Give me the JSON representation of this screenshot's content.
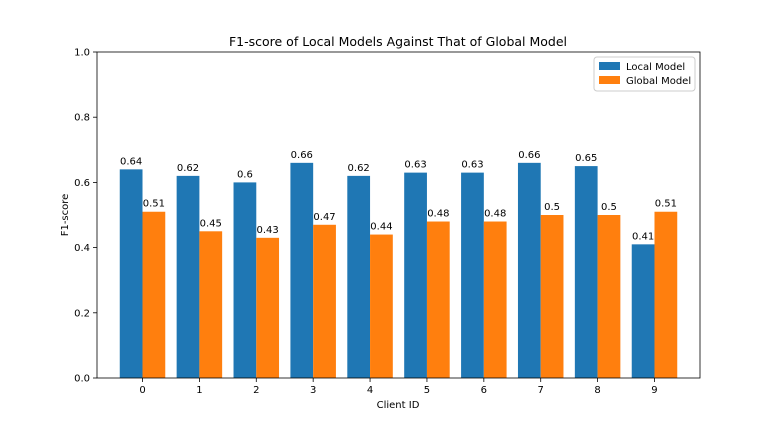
{
  "chart_data": {
    "type": "bar",
    "title": "F1-score of Local Models Against That of Global Model",
    "xlabel": "Client ID",
    "ylabel": "F1-score",
    "ylim": [
      0,
      1.0
    ],
    "yticks": [
      0.0,
      0.2,
      0.4,
      0.6,
      0.8,
      1.0
    ],
    "ytick_labels": [
      "0.0",
      "0.2",
      "0.4",
      "0.6",
      "0.8",
      "1.0"
    ],
    "categories": [
      "0",
      "1",
      "2",
      "3",
      "4",
      "5",
      "6",
      "7",
      "8",
      "9"
    ],
    "grid": false,
    "legend_position": "top-right",
    "series": [
      {
        "name": "Local Model",
        "color": "#1f77b4",
        "values": [
          0.64,
          0.62,
          0.6,
          0.66,
          0.62,
          0.63,
          0.63,
          0.66,
          0.65,
          0.41
        ],
        "labels": [
          "0.64",
          "0.62",
          "0.6",
          "0.66",
          "0.62",
          "0.63",
          "0.63",
          "0.66",
          "0.65",
          "0.41"
        ]
      },
      {
        "name": "Global Model",
        "color": "#ff7f0e",
        "values": [
          0.51,
          0.45,
          0.43,
          0.47,
          0.44,
          0.48,
          0.48,
          0.5,
          0.5,
          0.51
        ],
        "labels": [
          "0.51",
          "0.45",
          "0.43",
          "0.47",
          "0.44",
          "0.48",
          "0.48",
          "0.5",
          "0.5",
          "0.51"
        ]
      }
    ]
  }
}
